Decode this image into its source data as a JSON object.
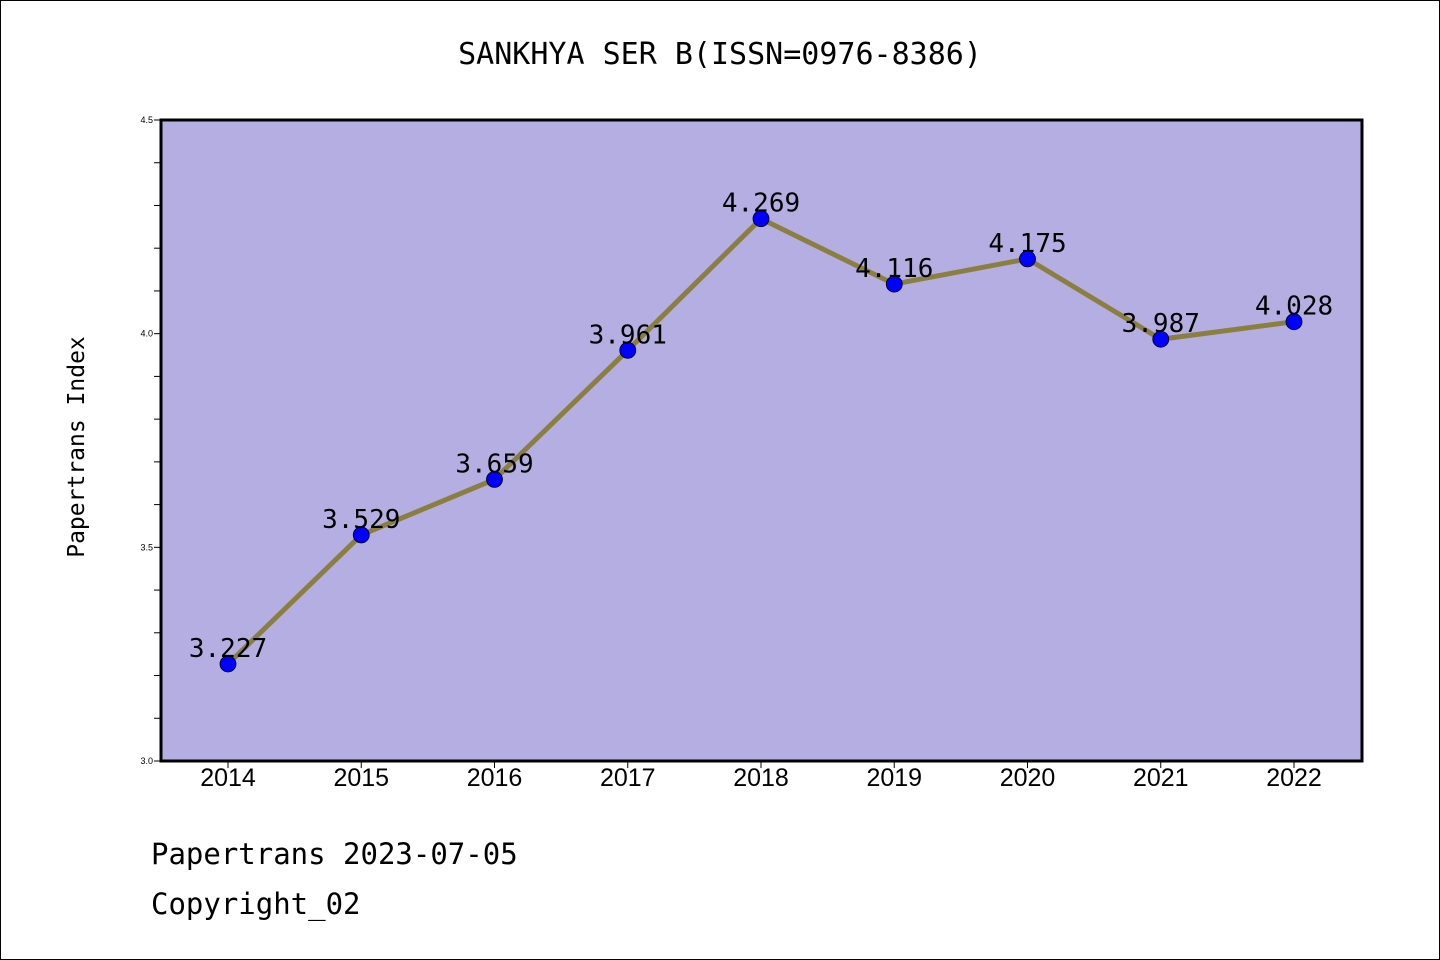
{
  "chart_data": {
    "type": "line",
    "title": "SANKHYA SER B(ISSN=0976-8386)",
    "xlabel": "",
    "ylabel": "Papertrans Index",
    "categories": [
      "2014",
      "2015",
      "2016",
      "2017",
      "2018",
      "2019",
      "2020",
      "2021",
      "2022"
    ],
    "series": [
      {
        "values": [
          3.227,
          3.529,
          3.659,
          3.961,
          4.269,
          4.116,
          4.175,
          3.987,
          4.028
        ],
        "labels": [
          "3.227",
          "3.529",
          "3.659",
          "3.961",
          "4.269",
          "4.116",
          "4.175",
          "3.987",
          "4.028"
        ]
      }
    ],
    "ylim": [
      3.0,
      4.5
    ],
    "yticks": [
      "3.0",
      "3.5",
      "4.0",
      "4.5"
    ],
    "ytick_values": [
      3.0,
      3.5,
      4.0,
      4.5
    ],
    "grid": false,
    "colors": {
      "plot_background": "#b5aee3",
      "line": "#8b7f3f",
      "marker": "#0000ff"
    }
  },
  "footer": {
    "line1": "Papertrans 2023-07-05",
    "line2": "Copyright_02"
  }
}
